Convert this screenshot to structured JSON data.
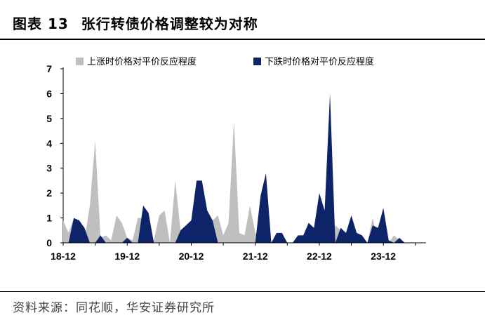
{
  "header": {
    "figure_label": "图表 13",
    "title": "张行转债价格调整较为对称"
  },
  "footer": {
    "source": "资料来源：同花顺，华安证券研究所"
  },
  "chart_data": {
    "type": "area",
    "ylim": [
      0,
      7
    ],
    "y_ticks": [
      "0",
      "1",
      "2",
      "3",
      "4",
      "5",
      "6",
      "7"
    ],
    "x_tick_labels": [
      "18-12",
      "19-12",
      "20-12",
      "21-12",
      "22-12",
      "23-12"
    ],
    "x_tick_positions": [
      0,
      12,
      24,
      36,
      48,
      60
    ],
    "x_range": [
      0,
      68
    ],
    "legend_placement": "top",
    "series": [
      {
        "name": "上涨时价格对平价反应程度",
        "color": "#bfbfbf",
        "values": [
          0.9,
          0.4,
          1.0,
          0.0,
          0.1,
          1.5,
          4.1,
          0.2,
          0.3,
          0.1,
          1.1,
          0.8,
          0.2,
          0.1,
          1.0,
          1.0,
          0.2,
          0.1,
          1.1,
          1.3,
          0.0,
          2.5,
          0.5,
          0.0,
          0.3,
          2.3,
          0.7,
          0.0,
          0.9,
          1.1,
          0.3,
          0.8,
          4.9,
          0.4,
          0.3,
          1.5,
          0.4,
          0.0,
          0.0,
          0.0,
          0.0,
          0.4,
          0.0,
          0.0,
          0.0,
          0.0,
          0.0,
          0.3,
          1.4,
          0.0,
          0.1,
          0.7,
          0.5,
          0.0,
          0.3,
          0.0,
          0.0,
          0.0,
          1.0,
          0.0,
          0.0,
          0.0,
          0.3,
          0.1,
          0.0,
          0.0,
          0.0,
          0.0,
          0.0
        ]
      },
      {
        "name": "下跌时价格对平价反应程度",
        "color": "#0d2469",
        "values": [
          0.0,
          0.0,
          1.0,
          0.9,
          0.6,
          0.0,
          0.0,
          0.3,
          0.0,
          0.0,
          0.0,
          0.0,
          0.2,
          0.0,
          0.0,
          1.5,
          1.2,
          0.0,
          0.0,
          0.0,
          0.0,
          0.0,
          0.5,
          0.7,
          0.9,
          2.5,
          2.5,
          1.3,
          0.9,
          0.0,
          0.0,
          0.0,
          0.0,
          0.0,
          0.0,
          0.0,
          0.0,
          1.9,
          2.8,
          0.0,
          0.4,
          0.4,
          0.0,
          0.0,
          0.3,
          0.3,
          0.8,
          0.6,
          2.0,
          1.3,
          6.0,
          0.0,
          0.6,
          0.4,
          1.1,
          0.4,
          0.3,
          0.0,
          0.7,
          0.6,
          1.4,
          0.1,
          0.0,
          0.2,
          0.0,
          0.0,
          0.0,
          0.0,
          0.0
        ]
      }
    ]
  }
}
